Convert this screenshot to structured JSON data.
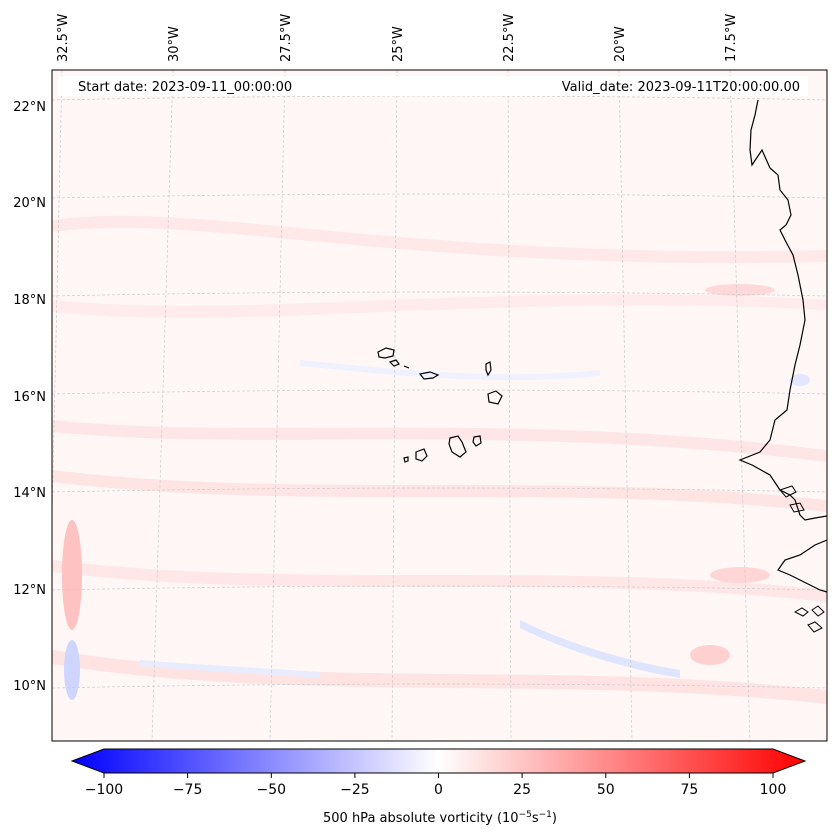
{
  "header": {
    "start_date": "Start date: 2023-09-11_00:00:00",
    "valid_date": "Valid_date: 2023-09-11T20:00:00.00"
  },
  "axes": {
    "lon_labels": [
      "32.5°W",
      "30°W",
      "27.5°W",
      "25°W",
      "22.5°W",
      "20°W",
      "17.5°W"
    ],
    "lat_labels": [
      "22°N",
      "20°N",
      "18°N",
      "16°N",
      "14°N",
      "12°N",
      "10°N"
    ]
  },
  "colorbar": {
    "ticks": [
      "−100",
      "−75",
      "−50",
      "−25",
      "0",
      "25",
      "50",
      "75",
      "100"
    ],
    "title": "500 hPa absolute vorticity (10",
    "title_exp1": "−5",
    "title_mid": "s",
    "title_exp2": "−1",
    "title_end": ")",
    "min_color": "#0000ff",
    "mid_color": "#ffffff",
    "max_color": "#ff0000"
  },
  "colors": {
    "background_tint": "#fff6f6",
    "gridline": "#cccccc",
    "coastline": "#000000"
  },
  "map_features": {
    "islands": [
      "Cape Verde Islands"
    ],
    "coastline": "West African coast"
  }
}
